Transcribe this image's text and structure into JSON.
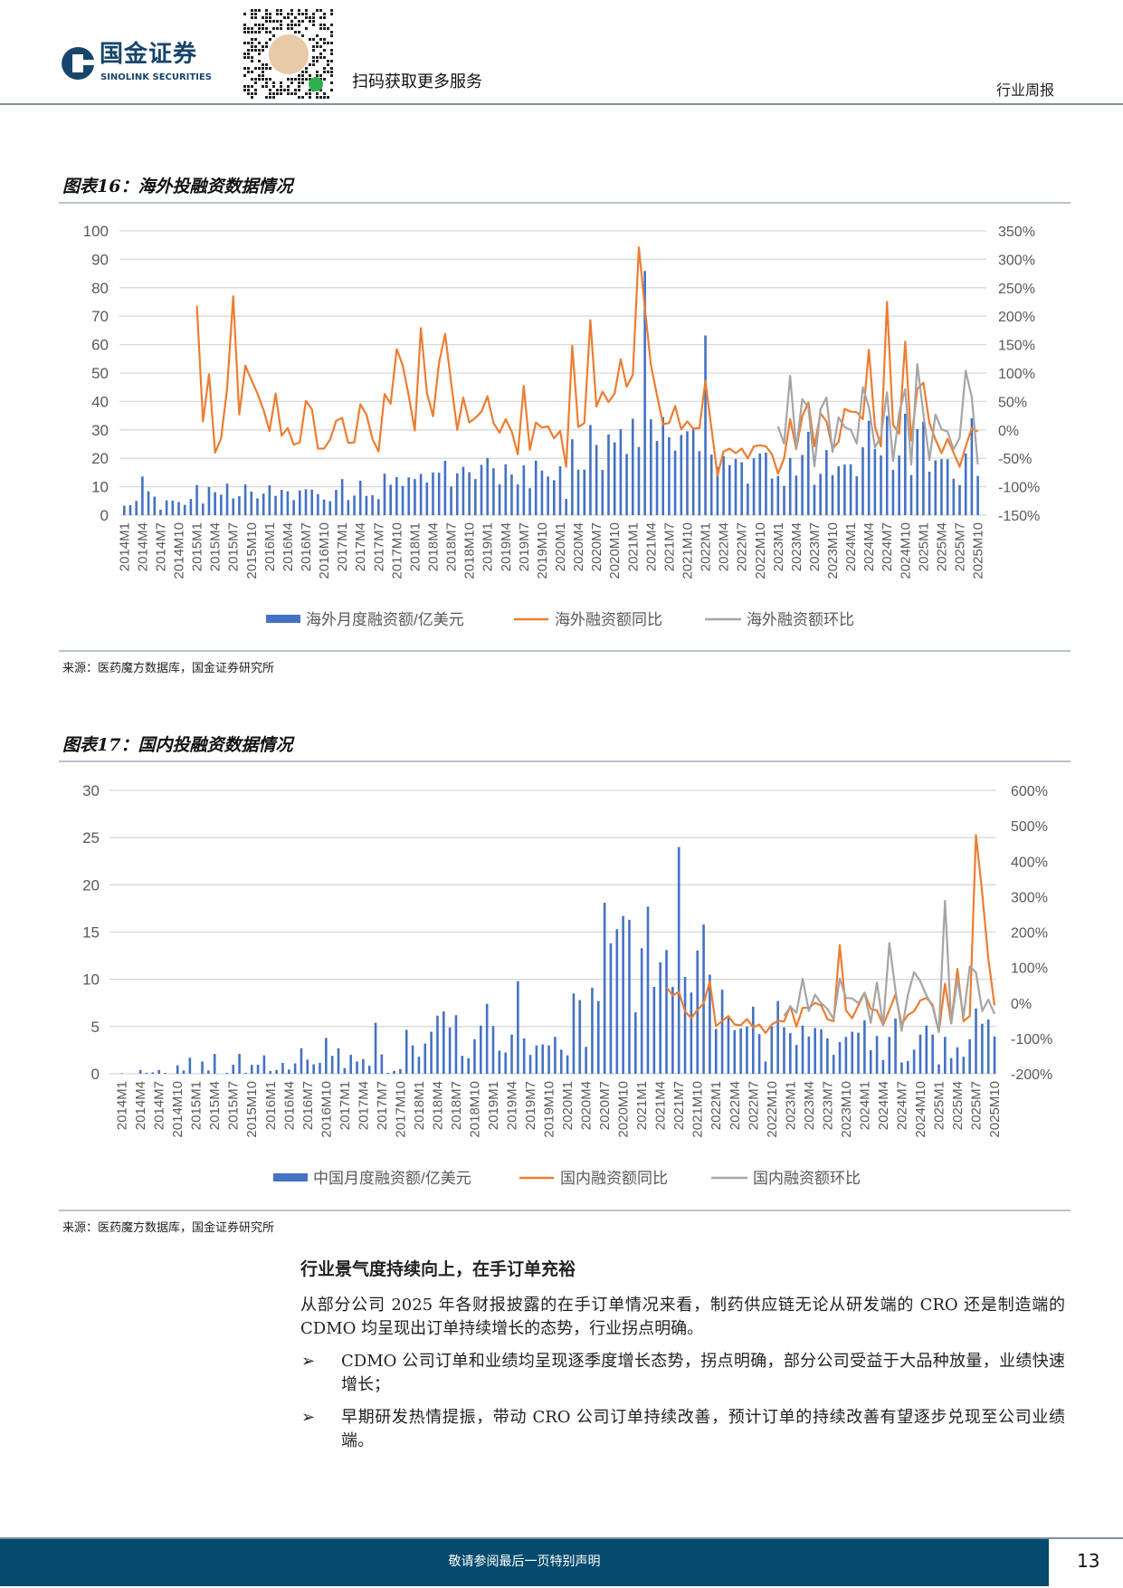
{
  "header": {
    "logo_cn": "国金证券",
    "logo_en": "SINOLINK SECURITIES",
    "qr_caption": "扫码获取更多服务",
    "report_type": "行业周报"
  },
  "figure16": {
    "title": "图表16：海外投融资数据情况",
    "source": "来源：医药魔方数据库，国金证券研究所"
  },
  "figure17": {
    "title": "图表17：国内投融资数据情况",
    "source": "来源：医药魔方数据库，国金证券研究所"
  },
  "chart_data": [
    {
      "type": "bar+line",
      "x_range": [
        "2014M1",
        "2025M10"
      ],
      "x_tick_step_months": 3,
      "y_left": {
        "lim": [
          0,
          100
        ],
        "ticks": [
          "100",
          "90",
          "80",
          "70",
          "60",
          "50",
          "40",
          "30",
          "20",
          "10",
          "0"
        ]
      },
      "y_right": {
        "lim": [
          -150,
          350
        ],
        "unit": "%",
        "ticks": [
          "350%",
          "300%",
          "250%",
          "200%",
          "150%",
          "100%",
          "50%",
          "0%",
          "-50%",
          "-100%",
          "-150%"
        ]
      },
      "grid": true,
      "legend": "bottom",
      "colors": {
        "bar": "#4472c4",
        "yoy": "#ed7d31",
        "mom": "#a5a5a5"
      },
      "bar_series": {
        "name": "海外月度融资额/亿美元",
        "start": "2014M1",
        "values": [
          3.3,
          3.5,
          5,
          13.6,
          8.4,
          6.5,
          1.9,
          5.2,
          5.1,
          4.6,
          3.6,
          5.7,
          10.6,
          4.1,
          9.9,
          8.1,
          7.2,
          11.1,
          5.9,
          6.7,
          10.8,
          8.3,
          5.9,
          7.6,
          10.5,
          6.8,
          8.9,
          8.4,
          5.3,
          8.7,
          9.1,
          9,
          7.4,
          5.5,
          4.9,
          8.9,
          12.7,
          5.3,
          6.9,
          12.1,
          6.8,
          7,
          5.6,
          14.6,
          10.7,
          13.4,
          10.3,
          13.3,
          12.7,
          14.5,
          11.5,
          15,
          14.9,
          19.1,
          10.1,
          14.7,
          17,
          15.1,
          12.7,
          17.7,
          20.1,
          16.5,
          10.8,
          17.9,
          14.3,
          10.8,
          17.5,
          9.5,
          19.2,
          15.7,
          13.6,
          12.3,
          17.2,
          5.7,
          26.7,
          16,
          16,
          31.7,
          24.7,
          15.9,
          28.4,
          25.6,
          30.2,
          21.5,
          33.9,
          24,
          85.9,
          33.7,
          26.1,
          34.5,
          27.4,
          22.7,
          28.2,
          29.5,
          30.2,
          22.5,
          63.2,
          21.3,
          17,
          20.8,
          17.6,
          19.8,
          18.6,
          11.1,
          20,
          21.7,
          22,
          12.9,
          13.8,
          10.3,
          20.1,
          13.9,
          21.2,
          29.3,
          10.7,
          14.5,
          22.9,
          14.1,
          17.2,
          17.8,
          17.9,
          13.7,
          23.9,
          33.2,
          23.3,
          21,
          34.9,
          15.9,
          21,
          35.7,
          14.1,
          30.3,
          32.9,
          15.3,
          19.3,
          19.7,
          19.7,
          12.8,
          10.6,
          21.7,
          34.1,
          13.8
        ]
      },
      "line_series": [
        {
          "name": "海外融资额同比",
          "axis": "right",
          "start": "2015M1",
          "values": [
            218,
            15,
            98,
            -40,
            -15,
            73,
            235,
            27,
            113,
            88,
            64,
            35,
            -2,
            64,
            -10,
            3,
            -26,
            -22,
            51,
            36,
            -33,
            -33,
            -17,
            16,
            21,
            -23,
            -22,
            45,
            27,
            -16,
            -38,
            63,
            46,
            142,
            114,
            60,
            -1,
            179,
            65,
            24,
            118,
            169,
            82,
            0,
            57,
            13,
            21,
            32,
            59,
            12,
            -5,
            19,
            -3,
            -43,
            77,
            -35,
            13,
            4,
            6,
            -15,
            -2,
            -65,
            148,
            5,
            12,
            193,
            41,
            67,
            49,
            64,
            124,
            76,
            97,
            321,
            215,
            114,
            61,
            10,
            12,
            42,
            1,
            15,
            2,
            3,
            86,
            3,
            -80,
            -38,
            -33,
            -41,
            -33,
            -50,
            -29,
            -27,
            -29,
            -43,
            -77,
            -50,
            19,
            -34,
            24,
            48,
            -29,
            29,
            15,
            -33,
            -21,
            37,
            32,
            31,
            19,
            141,
            6,
            -29,
            225,
            9,
            -7,
            155,
            -19,
            72,
            83,
            12,
            -17,
            -41,
            -16,
            -40,
            -65,
            -29,
            3,
            -3
          ]
        },
        {
          "name": "海外融资额环比",
          "axis": "right",
          "start": "2023M1",
          "values": [
            6,
            -24,
            95,
            -33,
            54,
            40,
            -64,
            36,
            57,
            -39,
            22,
            5,
            0,
            -24,
            75,
            40,
            -31,
            -12,
            66,
            -55,
            29,
            72,
            -61,
            116,
            29,
            -53,
            27,
            1,
            -3,
            -34,
            -14,
            104,
            57,
            -61
          ]
        }
      ]
    },
    {
      "type": "bar+line",
      "x_range": [
        "2014M1",
        "2025M10"
      ],
      "x_tick_step_months": 3,
      "y_left": {
        "lim": [
          0,
          30
        ],
        "ticks": [
          "30",
          "25",
          "20",
          "15",
          "10",
          "5",
          "0"
        ]
      },
      "y_right": {
        "lim": [
          -200,
          600
        ],
        "unit": "%",
        "ticks": [
          "600%",
          "500%",
          "400%",
          "300%",
          "200%",
          "100%",
          "0%",
          "-100%",
          "-200%"
        ]
      },
      "grid": true,
      "legend": "bottom",
      "colors": {
        "bar": "#4472c4",
        "yoy": "#ed7d31",
        "mom": "#a5a5a5"
      },
      "bar_series": {
        "name": "中国月度融资额/亿美元",
        "start": "2014M1",
        "values": [
          0.05,
          0,
          0,
          0.4,
          0.1,
          0.15,
          0.4,
          0.1,
          0,
          0.9,
          0.35,
          1.7,
          0,
          1.3,
          0.35,
          2.1,
          0,
          0.1,
          0.95,
          2.1,
          0.1,
          0.95,
          0.95,
          1.95,
          0.3,
          0.4,
          1.15,
          0.45,
          1.1,
          2.7,
          1.5,
          1,
          1.15,
          3.8,
          1.9,
          2.7,
          0.6,
          2,
          1.3,
          1.55,
          0.85,
          5.4,
          2.05,
          0.1,
          0.3,
          0.5,
          4.65,
          3,
          1.8,
          3.2,
          4.45,
          6.15,
          6.6,
          4.9,
          6.2,
          1.9,
          1.65,
          3.65,
          5.1,
          7.4,
          5.05,
          2.45,
          2.25,
          4.15,
          9.8,
          3.75,
          2,
          3,
          3.1,
          3,
          3.9,
          2.55,
          1.95,
          8.5,
          7.8,
          2.85,
          9.1,
          7.7,
          18.1,
          13.8,
          15.3,
          16.7,
          16.3,
          6.5,
          13.3,
          17.7,
          9.2,
          11.8,
          13.1,
          9.2,
          24,
          10.25,
          8.6,
          13.05,
          15.8,
          10.5,
          4.75,
          8.9,
          5.9,
          4.6,
          4.8,
          5,
          7.1,
          4.2,
          1.3,
          5,
          7.7,
          4.9,
          4.3,
          3.05,
          5.1,
          3.95,
          4.85,
          4.7,
          3.75,
          2,
          3.35,
          3.9,
          4.45,
          4.35,
          5.65,
          2.5,
          4,
          1.45,
          3.9,
          5.85,
          1.2,
          1.35,
          2.55,
          4.15,
          5.1,
          4.15,
          1,
          3.9,
          1.65,
          2.8,
          1.8,
          3.65,
          6.9,
          5.3,
          5.75,
          3.95
        ]
      },
      "line_series": [
        {
          "name": "国内融资额同比",
          "axis": "right",
          "start": "2021M5",
          "values": [
            44,
            21,
            31,
            -24,
            -43,
            -20,
            -1,
            60,
            -65,
            -51,
            -37,
            -61,
            -63,
            -46,
            -69,
            -61,
            -85,
            -61,
            -51,
            -52,
            -9,
            -67,
            -14,
            -14,
            0,
            -7,
            -46,
            -52,
            163,
            -21,
            -43,
            -7,
            28,
            -17,
            -21,
            -63,
            -20,
            24,
            -60,
            -34,
            -24,
            7,
            14,
            -5,
            -82,
            54,
            -58,
            96,
            -52,
            -37,
            474,
            311,
            124,
            -7
          ]
        },
        {
          "name": "国内融资额环比",
          "axis": "right",
          "start": "2022M12",
          "values": [
            -37,
            -11,
            -28,
            68,
            -23,
            23,
            -1,
            -17,
            -46,
            69,
            14,
            13,
            -1,
            29,
            -56,
            58,
            -64,
            169,
            35,
            -79,
            23,
            87,
            61,
            21,
            -11,
            -82,
            288,
            -58,
            67,
            -38,
            103,
            86,
            -23,
            9,
            -31
          ]
        }
      ]
    }
  ],
  "body": {
    "heading": "行业景气度持续向上，在手订单充裕",
    "paragraph": "从部分公司 2025 年各财报披露的在手订单情况来看，制药供应链无论从研发端的 CRO 还是制造端的 CDMO 均呈现出订单持续增长的态势，行业拐点明确。",
    "bullets": [
      "CDMO 公司订单和业绩均呈现逐季度增长态势，拐点明确，部分公司受益于大品种放量，业绩快速增长；",
      "早期研发热情提振，带动 CRO 公司订单持续改善，预计订单的持续改善有望逐步兑现至公司业绩端。"
    ],
    "bullet_glyph": "➢"
  },
  "footer": {
    "disclaimer": "敬请参阅最后一页特别声明",
    "page_number": "13"
  }
}
